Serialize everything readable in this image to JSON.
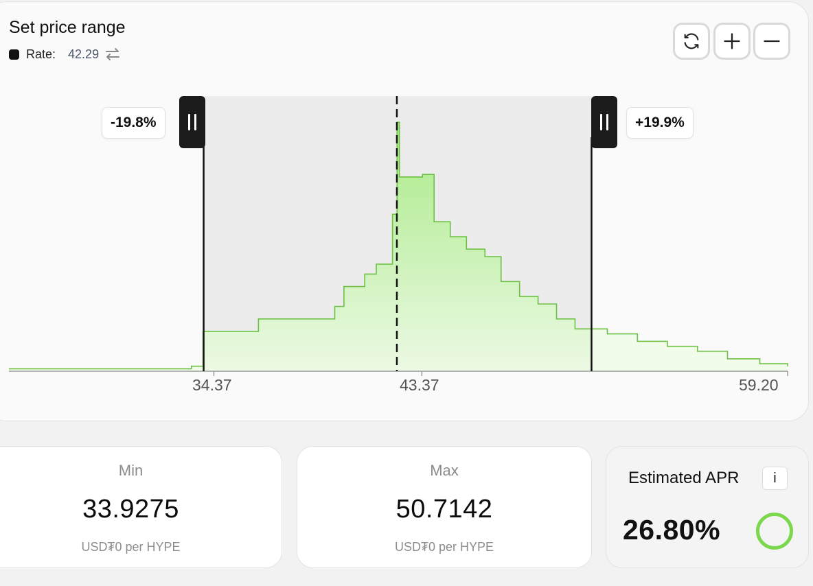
{
  "header": {
    "title": "Set price range",
    "rate_label": "Rate:",
    "rate_value": "42.29"
  },
  "controls": {
    "refresh": "refresh-icon",
    "zoom_in": "plus-icon",
    "zoom_out": "minus-icon"
  },
  "range": {
    "lower_pct": "-19.8%",
    "upper_pct": "+19.9%"
  },
  "chart_data": {
    "type": "area",
    "x_ticks": [
      "34.37",
      "43.37",
      "59.20"
    ],
    "x_range": [
      25.5,
      59.2
    ],
    "current_price": 42.29,
    "range_min": 33.9275,
    "range_max": 50.7142,
    "colors": {
      "fill": "#b4ec98",
      "line": "#6cc142",
      "selection": "#ececed"
    },
    "bins": [
      [
        25.5,
        1
      ],
      [
        33.4,
        2
      ],
      [
        33.9,
        16
      ],
      [
        36.3,
        21
      ],
      [
        39.6,
        26
      ],
      [
        40.0,
        34
      ],
      [
        40.9,
        39
      ],
      [
        41.4,
        43
      ],
      [
        42.1,
        63
      ],
      [
        42.3,
        100
      ],
      [
        42.4,
        78
      ],
      [
        43.4,
        79
      ],
      [
        43.9,
        60
      ],
      [
        44.6,
        54
      ],
      [
        45.3,
        49
      ],
      [
        46.1,
        46
      ],
      [
        46.8,
        36
      ],
      [
        47.6,
        30
      ],
      [
        48.4,
        27
      ],
      [
        49.2,
        21
      ],
      [
        50.0,
        17
      ],
      [
        51.4,
        15
      ],
      [
        52.7,
        12
      ],
      [
        54.0,
        10
      ],
      [
        55.3,
        8
      ],
      [
        56.6,
        5
      ],
      [
        58.0,
        3
      ],
      [
        59.2,
        2
      ]
    ]
  },
  "min_card": {
    "label": "Min",
    "value": "33.9275",
    "unit": "USD₮0 per HYPE"
  },
  "max_card": {
    "label": "Max",
    "value": "50.7142",
    "unit": "USD₮0 per HYPE"
  },
  "apr": {
    "title": "Estimated APR",
    "info": "i",
    "value": "26.80%"
  }
}
